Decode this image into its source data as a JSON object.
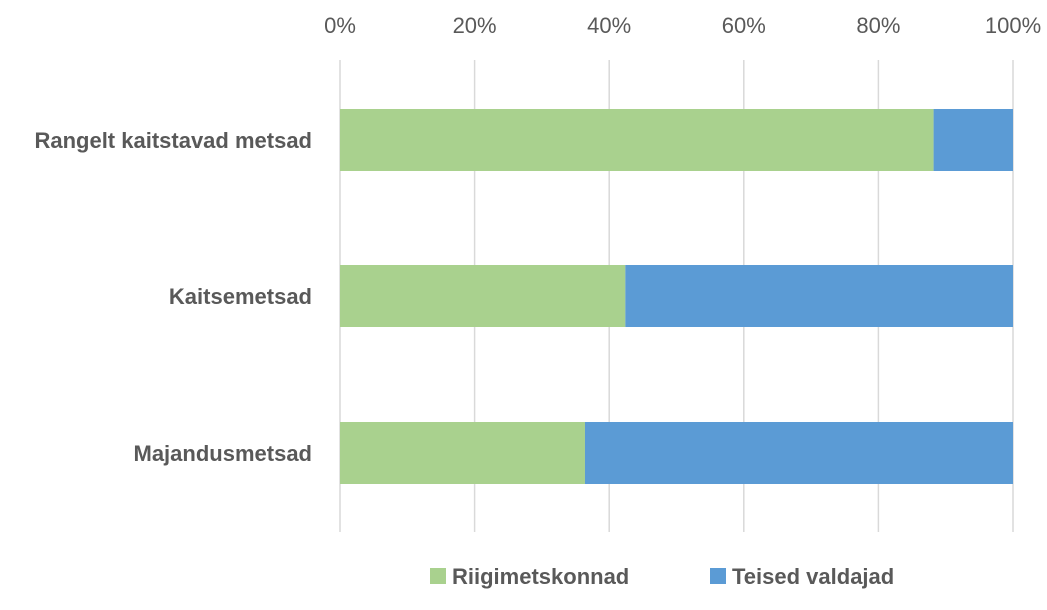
{
  "chart_data": {
    "type": "bar",
    "orientation": "horizontal",
    "stacked": "percent",
    "categories": [
      "Rangelt kaitstavad metsad",
      "Kaitsemetsad",
      "Majandusmetsad"
    ],
    "series": [
      {
        "name": "Riigimetskonnad",
        "values": [
          88.2,
          42.4,
          36.4
        ],
        "color": "#a9d18e"
      },
      {
        "name": "Teised valdajad",
        "values": [
          11.8,
          57.6,
          63.6
        ],
        "color": "#5b9bd5"
      }
    ],
    "xlim": [
      0,
      100
    ],
    "x_ticks": [
      "0%",
      "20%",
      "40%",
      "60%",
      "80%",
      "100%"
    ],
    "x_axis_position": "top",
    "grid": true,
    "gridline_color": "#d9d9d9",
    "legend_position": "bottom"
  }
}
